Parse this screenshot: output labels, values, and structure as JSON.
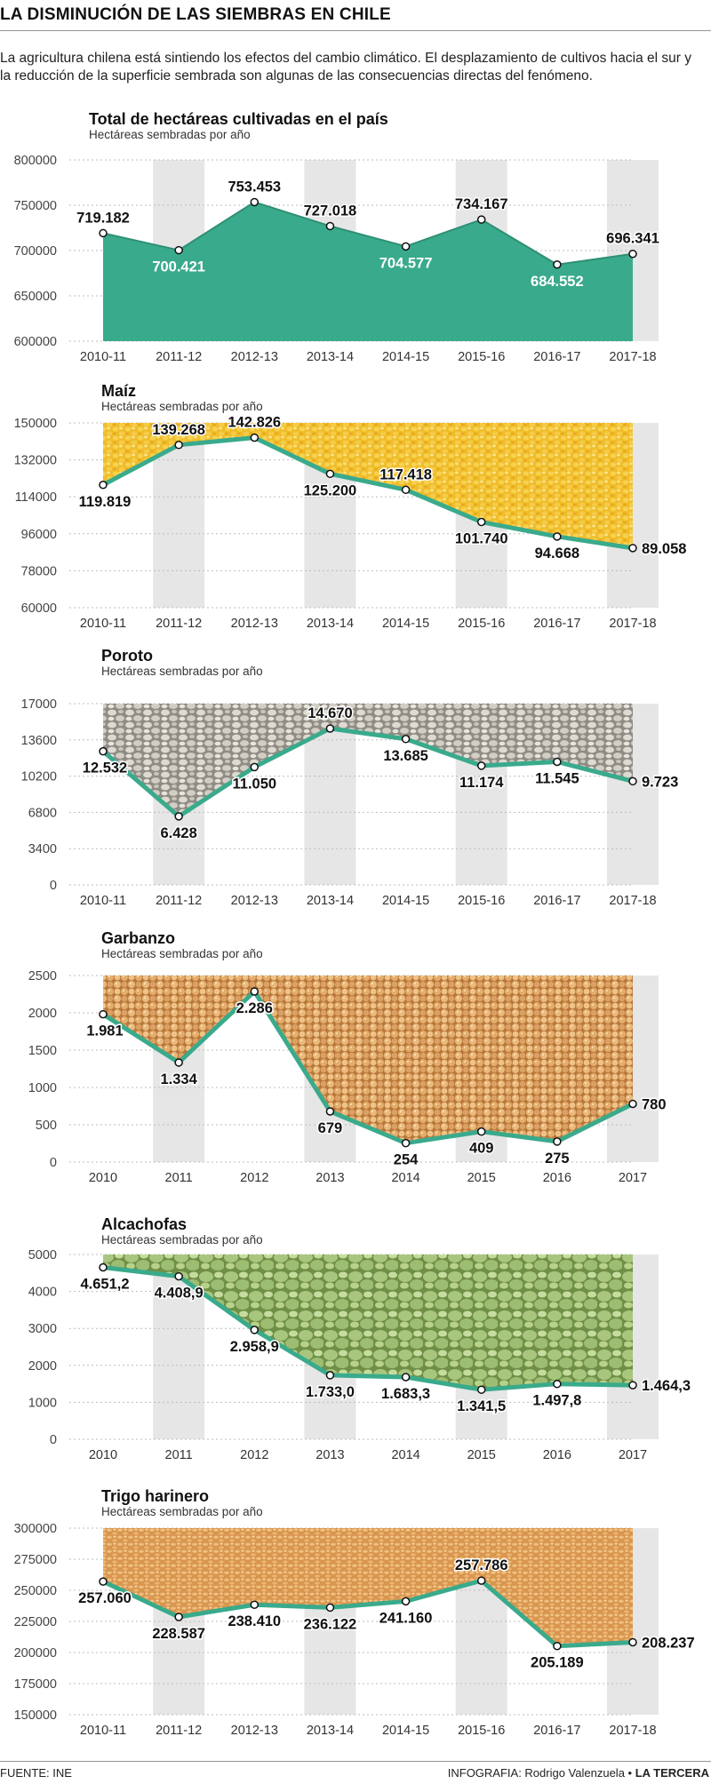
{
  "header": {
    "title": "LA DISMINUCIÓN DE LAS SIEMBRAS EN CHILE",
    "intro": "La agricultura chilena está sintiendo los efectos del cambio climático. El desplazamiento de cultivos hacia el sur y la reducción de la superficie sembrada son algunas de las consecuencias directas del fenómeno."
  },
  "footer": {
    "source": "FUENTE: INE",
    "credit_prefix": "INFOGRAFIA: Rodrigo Valenzuela • ",
    "credit_brand": "LA TERCERA"
  },
  "colors": {
    "teal": "#3aaa8c",
    "teal_dark": "#2e8f74",
    "band": "#e6e6e6",
    "corn": "#f2c230",
    "bean": "#c9c5bb",
    "chickpea": "#e2b37a",
    "artichoke": "#a4c47a",
    "wheat": "#e9b36a"
  },
  "chart_data": [
    {
      "type": "area",
      "title": "Total de hectáreas cultivadas en el país",
      "subtitle": "Hectáreas sembradas por año",
      "categories": [
        "2010-11",
        "2011-12",
        "2012-13",
        "2013-14",
        "2014-15",
        "2015-16",
        "2016-17",
        "2017-18"
      ],
      "values": [
        719182,
        700421,
        753453,
        727018,
        704577,
        734167,
        684552,
        696341
      ],
      "labels": [
        "719.182",
        "700.421",
        "753.453",
        "727.018",
        "704.577",
        "734.167",
        "684.552",
        "696.341"
      ],
      "yticks": [
        "800000",
        "750000",
        "700000",
        "650000",
        "600000"
      ],
      "ylim": [
        600000,
        800000
      ],
      "grid": true
    },
    {
      "type": "area",
      "title": "Maíz",
      "subtitle": "Hectáreas sembradas por año",
      "categories": [
        "2010-11",
        "2011-12",
        "2012-13",
        "2013-14",
        "2014-15",
        "2015-16",
        "2016-17",
        "2017-18"
      ],
      "values": [
        119819,
        139268,
        142826,
        125200,
        117418,
        101740,
        94668,
        89058
      ],
      "labels": [
        "119.819",
        "139.268",
        "142.826",
        "125.200",
        "117.418",
        "101.740",
        "94.668",
        "89.058"
      ],
      "yticks": [
        "150000",
        "132000",
        "114000",
        "96000",
        "78000",
        "60000"
      ],
      "ylim": [
        60000,
        150000
      ],
      "grid": true
    },
    {
      "type": "area",
      "title": "Poroto",
      "subtitle": "Hectáreas sembradas por año",
      "categories": [
        "2010-11",
        "2011-12",
        "2012-13",
        "2013-14",
        "2014-15",
        "2015-16",
        "2016-17",
        "2017-18"
      ],
      "values": [
        12532,
        6428,
        11050,
        14670,
        13685,
        11174,
        11545,
        9723
      ],
      "labels": [
        "12.532",
        "6.428",
        "11.050",
        "14.670",
        "13.685",
        "11.174",
        "11.545",
        "9.723"
      ],
      "yticks": [
        "17000",
        "13600",
        "10200",
        "6800",
        "3400",
        "0"
      ],
      "ylim": [
        0,
        17000
      ],
      "grid": true
    },
    {
      "type": "area",
      "title": "Garbanzo",
      "subtitle": "Hectáreas sembradas por año",
      "categories": [
        "2010",
        "2011",
        "2012",
        "2013",
        "2014",
        "2015",
        "2016",
        "2017"
      ],
      "values": [
        1981,
        1334,
        2286,
        679,
        254,
        409,
        275,
        780
      ],
      "labels": [
        "1.981",
        "1.334",
        "2.286",
        "679",
        "254",
        "409",
        "275",
        "780"
      ],
      "yticks": [
        "2500",
        "2000",
        "1500",
        "1000",
        "500",
        "0"
      ],
      "ylim": [
        0,
        2500
      ],
      "grid": true
    },
    {
      "type": "area",
      "title": "Alcachofas",
      "subtitle": "Hectáreas sembradas por año",
      "categories": [
        "2010",
        "2011",
        "2012",
        "2013",
        "2014",
        "2015",
        "2016",
        "2017"
      ],
      "values": [
        4651.2,
        4408.9,
        2958.9,
        1733.0,
        1683.3,
        1341.5,
        1497.8,
        1464.3
      ],
      "labels": [
        "4.651,2",
        "4.408,9",
        "2.958,9",
        "1.733,0",
        "1.683,3",
        "1.341,5",
        "1.497,8",
        "1.464,3"
      ],
      "yticks": [
        "5000",
        "4000",
        "3000",
        "2000",
        "1000",
        "0"
      ],
      "ylim": [
        0,
        5000
      ],
      "grid": true
    },
    {
      "type": "area",
      "title": "Trigo harinero",
      "subtitle": "Hectáreas sembradas por año",
      "categories": [
        "2010-11",
        "2011-12",
        "2012-13",
        "2013-14",
        "2014-15",
        "2015-16",
        "2016-17",
        "2017-18"
      ],
      "values": [
        257060,
        228587,
        238410,
        236122,
        241160,
        257786,
        205189,
        208237
      ],
      "labels": [
        "257.060",
        "228.587",
        "238.410",
        "236.122",
        "241.160",
        "257.786",
        "205.189",
        "208.237"
      ],
      "yticks": [
        "300000",
        "275000",
        "250000",
        "225000",
        "200000",
        "175000",
        "150000"
      ],
      "ylim": [
        150000,
        300000
      ],
      "grid": true
    }
  ]
}
